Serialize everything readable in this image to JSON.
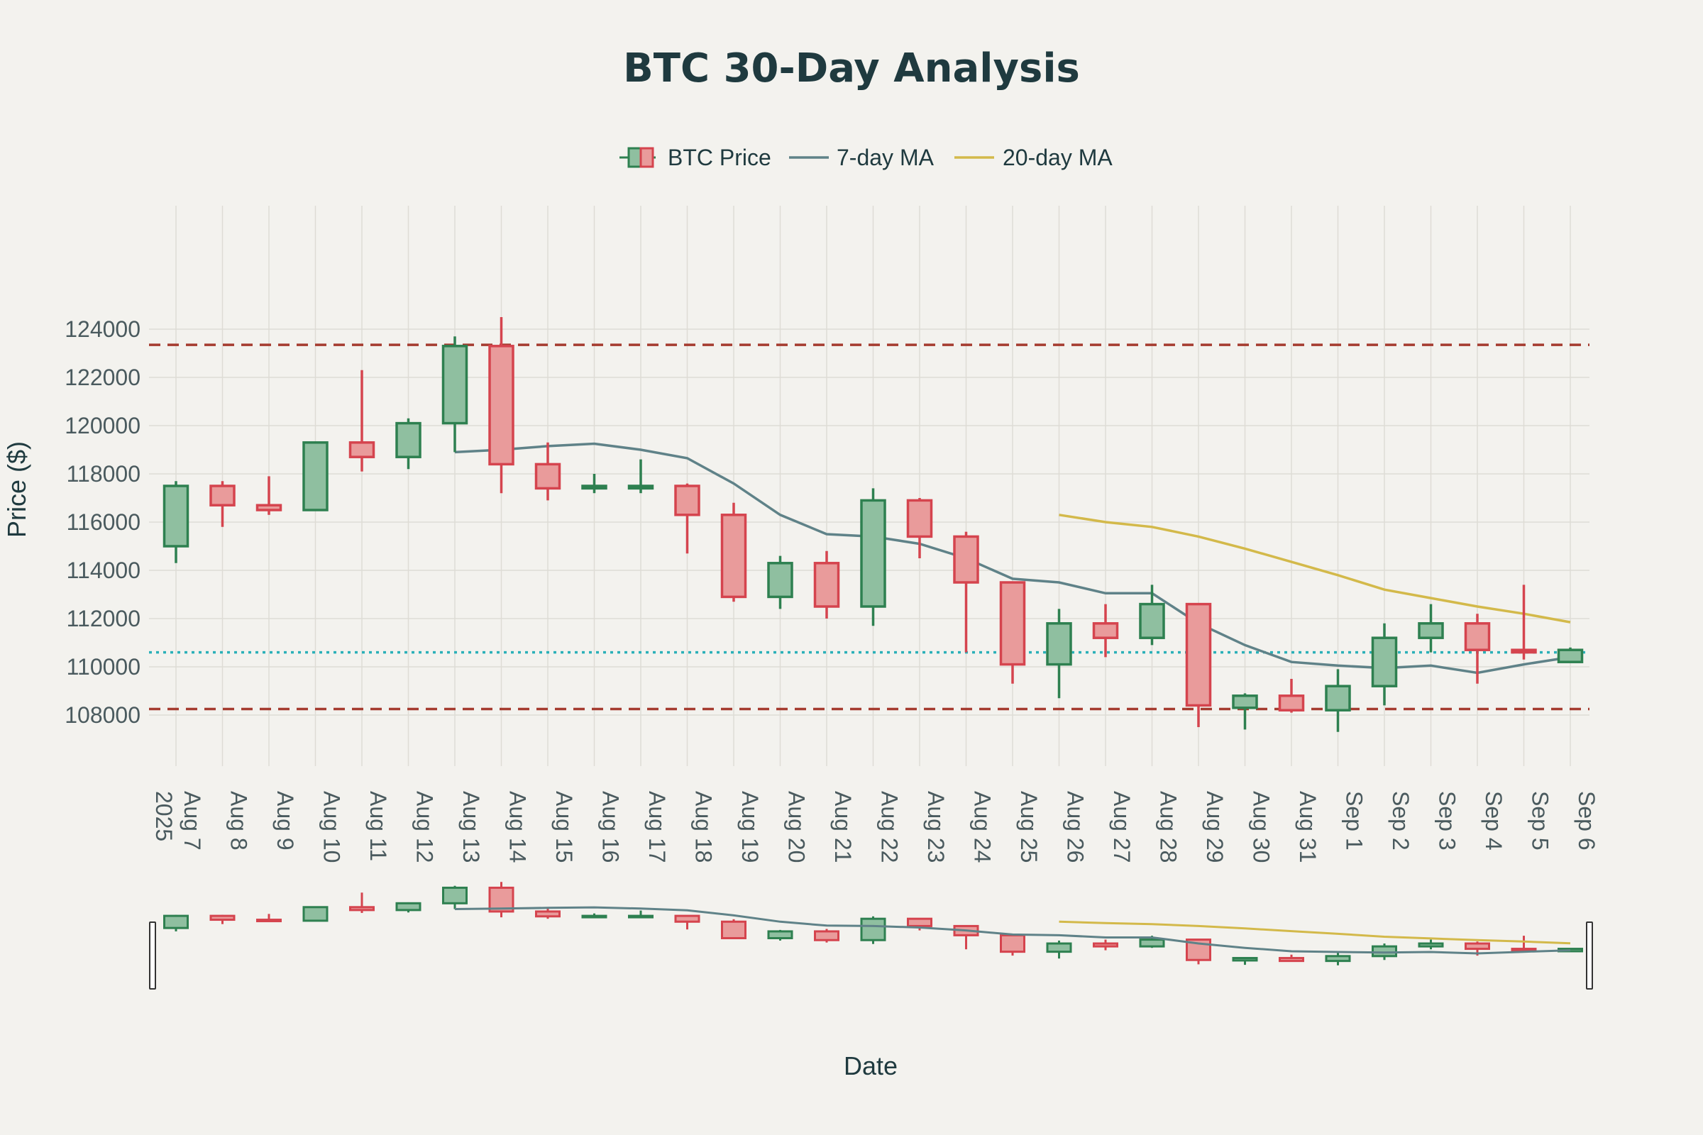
{
  "chart_data": {
    "type": "candlestick",
    "title": "BTC 30-Day Analysis",
    "xlabel": "Date",
    "ylabel": "Price ($)",
    "year_label": "2025",
    "ylim": [
      106000,
      125500
    ],
    "yticks": [
      108000,
      110000,
      112000,
      114000,
      116000,
      118000,
      120000,
      122000,
      124000
    ],
    "grid": true,
    "legend_position": "top-center",
    "legend": [
      "BTC Price",
      "7-day MA",
      "20-day MA"
    ],
    "dates": [
      "Aug 7",
      "Aug 8",
      "Aug 9",
      "Aug 10",
      "Aug 11",
      "Aug 12",
      "Aug 13",
      "Aug 14",
      "Aug 15",
      "Aug 16",
      "Aug 17",
      "Aug 18",
      "Aug 19",
      "Aug 20",
      "Aug 21",
      "Aug 22",
      "Aug 23",
      "Aug 24",
      "Aug 25",
      "Aug 26",
      "Aug 27",
      "Aug 28",
      "Aug 29",
      "Aug 30",
      "Aug 31",
      "Sep 1",
      "Sep 2",
      "Sep 3",
      "Sep 4",
      "Sep 5",
      "Sep 6"
    ],
    "ohlc": [
      {
        "open": 115000,
        "high": 117700,
        "low": 114300,
        "close": 117500
      },
      {
        "open": 117500,
        "high": 117700,
        "low": 115800,
        "close": 116700
      },
      {
        "open": 116700,
        "high": 117900,
        "low": 116300,
        "close": 116500
      },
      {
        "open": 116500,
        "high": 119300,
        "low": 116500,
        "close": 119300
      },
      {
        "open": 119300,
        "high": 122300,
        "low": 118100,
        "close": 118700
      },
      {
        "open": 118700,
        "high": 120300,
        "low": 118200,
        "close": 120100
      },
      {
        "open": 120100,
        "high": 123700,
        "low": 118900,
        "close": 123300
      },
      {
        "open": 123300,
        "high": 124500,
        "low": 117200,
        "close": 118400
      },
      {
        "open": 118400,
        "high": 119300,
        "low": 116900,
        "close": 117400
      },
      {
        "open": 117400,
        "high": 118000,
        "low": 117200,
        "close": 117500
      },
      {
        "open": 117400,
        "high": 118600,
        "low": 117200,
        "close": 117500
      },
      {
        "open": 117500,
        "high": 117600,
        "low": 114700,
        "close": 116300
      },
      {
        "open": 116300,
        "high": 116800,
        "low": 112700,
        "close": 112900
      },
      {
        "open": 112900,
        "high": 114600,
        "low": 112400,
        "close": 114300
      },
      {
        "open": 114300,
        "high": 114800,
        "low": 112000,
        "close": 112500
      },
      {
        "open": 112500,
        "high": 117400,
        "low": 111700,
        "close": 116900
      },
      {
        "open": 116900,
        "high": 117000,
        "low": 114500,
        "close": 115400
      },
      {
        "open": 115400,
        "high": 115600,
        "low": 110600,
        "close": 113500
      },
      {
        "open": 113500,
        "high": 113500,
        "low": 109300,
        "close": 110100
      },
      {
        "open": 110100,
        "high": 112400,
        "low": 108700,
        "close": 111800
      },
      {
        "open": 111800,
        "high": 112600,
        "low": 110400,
        "close": 111200
      },
      {
        "open": 111200,
        "high": 113400,
        "low": 110900,
        "close": 112600
      },
      {
        "open": 112600,
        "high": 112600,
        "low": 107500,
        "close": 108400
      },
      {
        "open": 108300,
        "high": 108900,
        "low": 107400,
        "close": 108800
      },
      {
        "open": 108800,
        "high": 109500,
        "low": 108100,
        "close": 108200
      },
      {
        "open": 108200,
        "high": 109900,
        "low": 107300,
        "close": 109200
      },
      {
        "open": 109200,
        "high": 111800,
        "low": 108400,
        "close": 111200
      },
      {
        "open": 111200,
        "high": 112600,
        "low": 110600,
        "close": 111800
      },
      {
        "open": 111800,
        "high": 112200,
        "low": 109300,
        "close": 110700
      },
      {
        "open": 110700,
        "high": 113400,
        "low": 110300,
        "close": 110600
      },
      {
        "open": 110200,
        "high": 110800,
        "low": 110200,
        "close": 110700
      }
    ],
    "ma7": [
      null,
      null,
      null,
      null,
      null,
      null,
      118900,
      119000,
      119150,
      119250,
      119000,
      118650,
      117600,
      116300,
      115500,
      115400,
      115100,
      114500,
      113650,
      113500,
      113050,
      113050,
      111800,
      110900,
      110200,
      110050,
      109950,
      110050,
      109750,
      110100,
      110400
    ],
    "ma20": [
      null,
      null,
      null,
      null,
      null,
      null,
      null,
      null,
      null,
      null,
      null,
      null,
      null,
      null,
      null,
      null,
      null,
      null,
      null,
      116300,
      116000,
      115800,
      115400,
      114900,
      114350,
      113800,
      113200,
      112850,
      112500,
      112200,
      111850
    ],
    "resistance": 123350,
    "support": 108250,
    "current_price": 110600,
    "colors": {
      "up_fill": "#8fbfa0",
      "up_line": "#2e8050",
      "down_fill": "#e99b9b",
      "down_line": "#d5444e",
      "ma7": "#5f8288",
      "ma20": "#d3b94a",
      "resistance": "#a53b2f",
      "support": "#a53b2f",
      "current": "#2ab0b8"
    }
  }
}
